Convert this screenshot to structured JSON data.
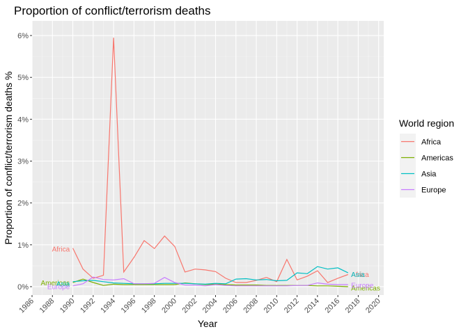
{
  "chart_data": {
    "type": "line",
    "title": "Proportion of conflict/terrorism deaths",
    "xlabel": "Year",
    "ylabel": "Proportion of conflict/terrorism deaths %",
    "xlim": [
      1986,
      2020.5
    ],
    "ylim": [
      -0.2,
      6.35
    ],
    "x_ticks": [
      1986,
      1988,
      1990,
      1992,
      1994,
      1996,
      1998,
      2000,
      2002,
      2004,
      2006,
      2008,
      2010,
      2012,
      2014,
      2016,
      2018,
      2020
    ],
    "y_ticks": [
      {
        "value": 0,
        "label": "0%"
      },
      {
        "value": 1,
        "label": "1%"
      },
      {
        "value": 2,
        "label": "2%"
      },
      {
        "value": 3,
        "label": "3%"
      },
      {
        "value": 4,
        "label": "4%"
      },
      {
        "value": 5,
        "label": "5%"
      },
      {
        "value": 6,
        "label": "6%"
      }
    ],
    "grid": true,
    "legend": {
      "title": "World region",
      "position": "right"
    },
    "x": [
      1990,
      1991,
      1992,
      1993,
      1994,
      1995,
      1996,
      1997,
      1998,
      1999,
      2000,
      2001,
      2002,
      2003,
      2004,
      2005,
      2006,
      2007,
      2008,
      2009,
      2010,
      2011,
      2012,
      2013,
      2014,
      2015,
      2016,
      2017
    ],
    "series": [
      {
        "name": "Africa",
        "color": "#F8766D",
        "label_left": "Africa",
        "label_right": "Africa",
        "values": [
          0.92,
          0.42,
          0.2,
          0.27,
          5.95,
          0.35,
          0.7,
          1.1,
          0.91,
          1.21,
          0.96,
          0.35,
          0.42,
          0.4,
          0.36,
          0.2,
          0.1,
          0.1,
          0.15,
          0.22,
          0.12,
          0.65,
          0.16,
          0.25,
          0.38,
          0.1,
          0.2,
          0.29
        ]
      },
      {
        "name": "Americas",
        "color": "#7CAE00",
        "label_left": "Americas",
        "label_right": "Americas",
        "values": [
          0.1,
          0.18,
          0.1,
          0.03,
          0.06,
          0.05,
          0.05,
          0.05,
          0.05,
          0.05,
          0.05,
          0.09,
          0.07,
          0.05,
          0.06,
          0.05,
          0.04,
          0.04,
          0.04,
          0.03,
          0.03,
          0.03,
          0.03,
          0.03,
          0.02,
          0.02,
          0.01,
          0.0
        ]
      },
      {
        "name": "Asia",
        "color": "#00BFC4",
        "label_left": "Asia",
        "label_right": "Asia",
        "values": [
          0.12,
          0.14,
          0.15,
          0.12,
          0.09,
          0.08,
          0.07,
          0.07,
          0.07,
          0.08,
          0.08,
          0.08,
          0.07,
          0.06,
          0.08,
          0.07,
          0.18,
          0.19,
          0.16,
          0.17,
          0.14,
          0.15,
          0.33,
          0.31,
          0.48,
          0.42,
          0.45,
          0.33
        ]
      },
      {
        "name": "Europe",
        "color": "#C77CFF",
        "label_left": "Europe",
        "label_right": "Europe",
        "values": [
          0.02,
          0.07,
          0.23,
          0.17,
          0.16,
          0.19,
          0.07,
          0.07,
          0.08,
          0.22,
          0.1,
          0.04,
          0.04,
          0.02,
          0.05,
          0.03,
          0.02,
          0.02,
          0.02,
          0.02,
          0.02,
          0.02,
          0.03,
          0.03,
          0.09,
          0.06,
          0.05,
          0.05
        ]
      }
    ]
  }
}
